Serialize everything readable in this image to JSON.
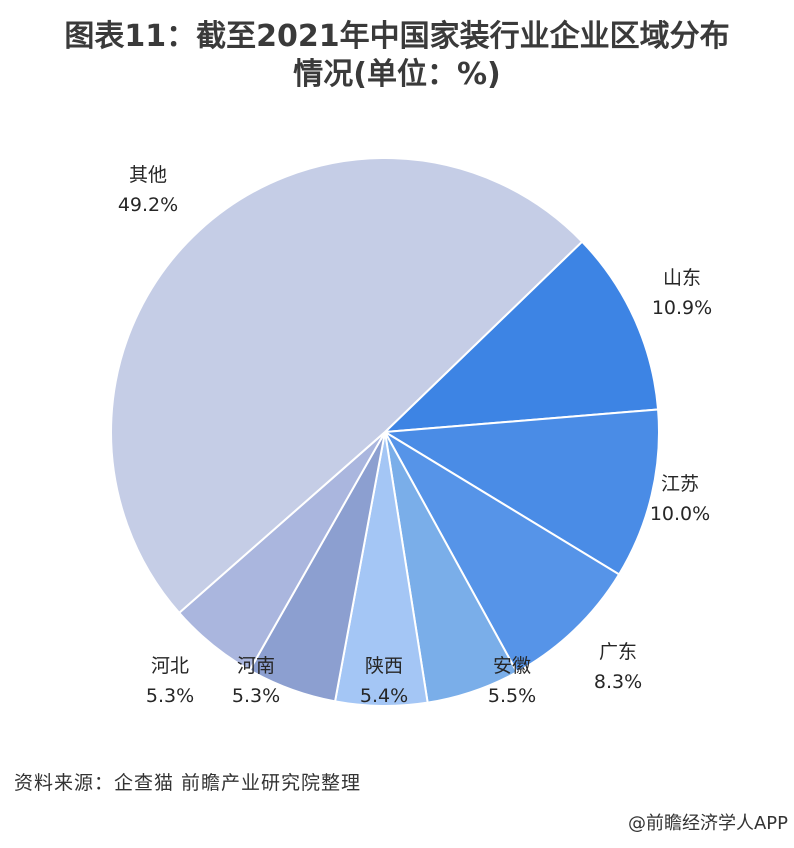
{
  "title": {
    "line1": "图表11：截至2021年中国家装行业企业区域分布",
    "line2": "情况(单位：%)"
  },
  "chart_data": {
    "type": "pie",
    "slices": [
      {
        "label": "其他",
        "value": 49.2,
        "value_text": "49.2%",
        "color": "#c5cde6"
      },
      {
        "label": "山东",
        "value": 10.9,
        "value_text": "10.9%",
        "color": "#3d84e4"
      },
      {
        "label": "江苏",
        "value": 10.0,
        "value_text": "10.0%",
        "color": "#4a8ce6"
      },
      {
        "label": "广东",
        "value": 8.3,
        "value_text": "8.3%",
        "color": "#5694e8"
      },
      {
        "label": "安徽",
        "value": 5.5,
        "value_text": "5.5%",
        "color": "#7aaee9"
      },
      {
        "label": "陕西",
        "value": 5.4,
        "value_text": "5.4%",
        "color": "#a4c6f5"
      },
      {
        "label": "河南",
        "value": 5.3,
        "value_text": "5.3%",
        "color": "#8c9fd0"
      },
      {
        "label": "河北",
        "value": 5.3,
        "value_text": "5.3%",
        "color": "#aab6de"
      }
    ]
  },
  "footer": {
    "source": "资料来源：企查猫 前瞻产业研究院整理",
    "credit": "@前瞻经济学人APP"
  }
}
